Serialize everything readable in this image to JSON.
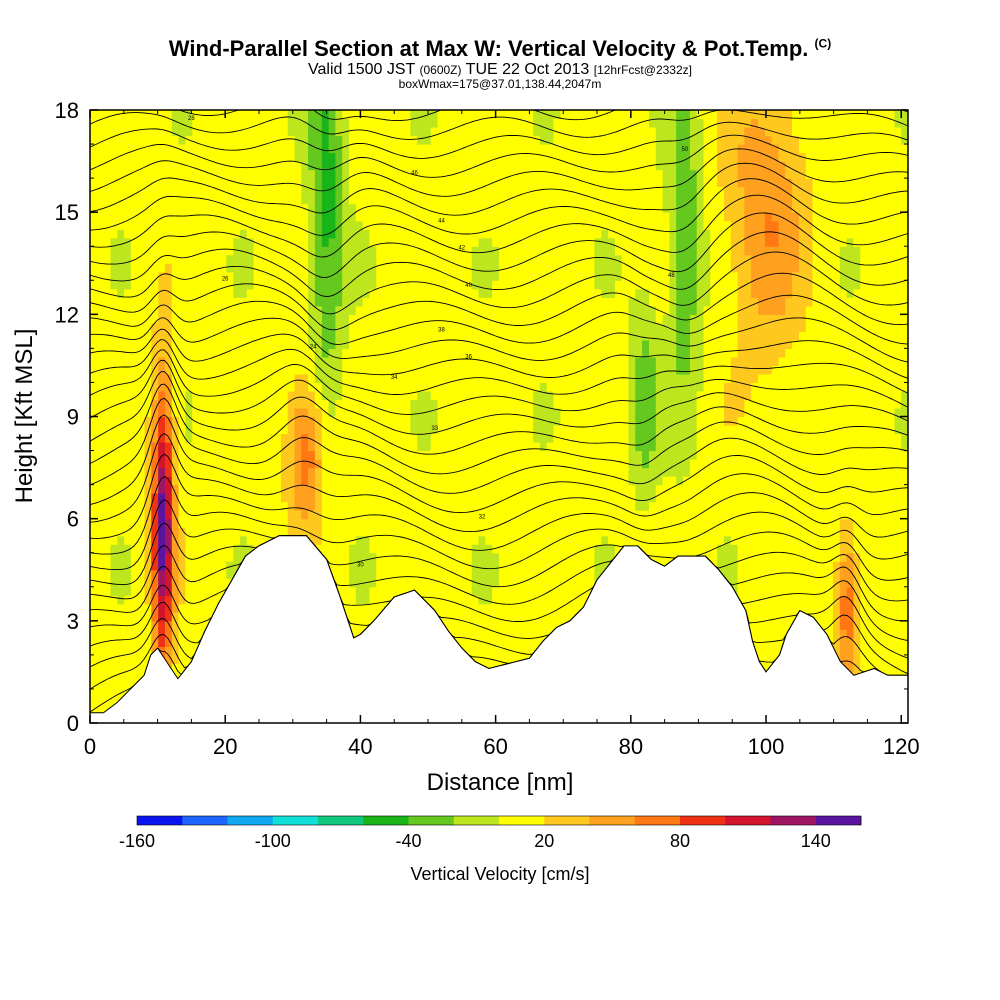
{
  "header": {
    "title": "Wind-Parallel Section at Max W: Vertical Velocity & Pot.Temp.",
    "copyright": "(C)",
    "valid_prefix": "Valid 1500 JST",
    "valid_utc": "(0600Z)",
    "valid_date": "TUE 22 Oct 2013",
    "forecast": "[12hrFcst@2332z]",
    "box": "boxWmax=175@37.01,138.44,2047m"
  },
  "chart_data": {
    "type": "heatmap",
    "xlabel": "Distance [nm]",
    "ylabel": "Height [Kft MSL]",
    "xlim": [
      0,
      121
    ],
    "ylim": [
      0,
      18
    ],
    "xticks": [
      0,
      20,
      40,
      60,
      80,
      100,
      120
    ],
    "yticks": [
      0,
      3,
      6,
      9,
      12,
      15,
      18
    ],
    "colorbar": {
      "title": "Vertical Velocity [cm/s]",
      "range": [
        -160,
        160
      ],
      "tick_values": [
        -160,
        -100,
        -40,
        20,
        80,
        140
      ],
      "tick_labels": [
        "-160",
        "-100",
        "-40",
        "20",
        "80",
        "140"
      ],
      "colors": [
        "#0a14f0",
        "#1e64ff",
        "#10a8f0",
        "#10e0d8",
        "#10c880",
        "#18b418",
        "#64c81e",
        "#bee61e",
        "#ffff00",
        "#ffc81e",
        "#ffa01e",
        "#ff7814",
        "#f03214",
        "#d2142d",
        "#a01464",
        "#5a14a0"
      ]
    },
    "terrain_kft": [
      [
        0,
        0.3
      ],
      [
        2,
        0.3
      ],
      [
        4,
        0.6
      ],
      [
        6,
        1.0
      ],
      [
        8,
        1.4
      ],
      [
        9,
        2.0
      ],
      [
        10,
        2.2
      ],
      [
        12,
        1.6
      ],
      [
        13,
        1.3
      ],
      [
        15,
        1.8
      ],
      [
        17,
        2.7
      ],
      [
        19,
        3.5
      ],
      [
        21,
        4.2
      ],
      [
        23,
        4.9
      ],
      [
        25,
        5.2
      ],
      [
        28,
        5.5
      ],
      [
        32,
        5.5
      ],
      [
        35,
        4.8
      ],
      [
        37,
        3.7
      ],
      [
        39,
        2.5
      ],
      [
        40,
        2.6
      ],
      [
        42,
        3.0
      ],
      [
        45,
        3.7
      ],
      [
        48,
        3.9
      ],
      [
        51,
        3.3
      ],
      [
        53,
        2.7
      ],
      [
        55,
        2.2
      ],
      [
        57,
        1.8
      ],
      [
        59,
        1.6
      ],
      [
        61,
        1.7
      ],
      [
        63,
        1.8
      ],
      [
        65,
        1.9
      ],
      [
        67,
        2.4
      ],
      [
        69,
        2.8
      ],
      [
        71,
        3.0
      ],
      [
        73,
        3.4
      ],
      [
        75,
        4.2
      ],
      [
        77,
        4.7
      ],
      [
        79,
        5.2
      ],
      [
        81,
        5.2
      ],
      [
        83,
        4.8
      ],
      [
        85,
        4.6
      ],
      [
        87,
        4.9
      ],
      [
        91,
        4.9
      ],
      [
        93,
        4.5
      ],
      [
        95,
        4.0
      ],
      [
        97,
        3.3
      ],
      [
        98,
        2.4
      ],
      [
        99,
        1.8
      ],
      [
        100,
        1.5
      ],
      [
        102,
        2.0
      ],
      [
        103,
        2.6
      ],
      [
        105,
        3.3
      ],
      [
        107,
        3.1
      ],
      [
        109,
        2.6
      ],
      [
        111,
        1.8
      ],
      [
        113,
        1.4
      ],
      [
        116,
        1.6
      ],
      [
        118,
        1.4
      ],
      [
        121,
        1.4
      ]
    ],
    "theta_contours_K": [
      "24",
      "26",
      "28",
      "30",
      "32",
      "33",
      "34",
      "36",
      "38",
      "40",
      "42",
      "44",
      "46",
      "48",
      "50"
    ],
    "w_features": [
      {
        "x": 10.8,
        "y": 5.8,
        "w": 140,
        "sx": 1.1,
        "sy": 3.0
      },
      {
        "x": 32,
        "y": 8.0,
        "w": 70,
        "sx": 2.0,
        "sy": 1.5
      },
      {
        "x": 35,
        "y": 15.5,
        "w": -55,
        "sx": 1.8,
        "sy": 4.5
      },
      {
        "x": 88,
        "y": 14,
        "w": -45,
        "sx": 1.8,
        "sy": 3.5
      },
      {
        "x": 82,
        "y": 9.5,
        "w": -40,
        "sx": 1.5,
        "sy": 2.0
      },
      {
        "x": 100,
        "y": 15,
        "w": 50,
        "sx": 4,
        "sy": 3
      },
      {
        "x": 112,
        "y": 3.5,
        "w": 70,
        "sx": 1.2,
        "sy": 1.5
      }
    ]
  }
}
